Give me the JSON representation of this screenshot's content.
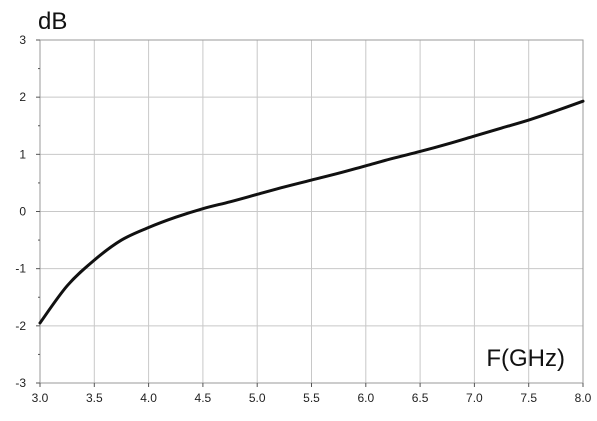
{
  "chart_data": {
    "type": "line",
    "xlabel": "F(GHz)",
    "ylabel": "dB",
    "xlim": [
      3.0,
      8.0
    ],
    "ylim": [
      -3,
      3
    ],
    "x_ticks": [
      "3.0",
      "3.5",
      "4.0",
      "4.5",
      "5.0",
      "5.5",
      "6.0",
      "6.5",
      "7.0",
      "7.5",
      "8.0"
    ],
    "y_ticks": [
      "3",
      "2",
      "1",
      "0",
      "-1",
      "-2",
      "-3"
    ],
    "grid": true,
    "series_color": "#111111",
    "series": [
      {
        "x": [
          3.0,
          3.25,
          3.5,
          3.75,
          4.0,
          4.25,
          4.5,
          4.75,
          5.0,
          5.25,
          5.5,
          5.75,
          6.0,
          6.25,
          6.5,
          6.75,
          7.0,
          7.25,
          7.5,
          7.75,
          8.0
        ],
        "y": [
          -1.95,
          -1.3,
          -0.85,
          -0.5,
          -0.28,
          -0.1,
          0.05,
          0.17,
          0.3,
          0.43,
          0.55,
          0.67,
          0.8,
          0.93,
          1.05,
          1.18,
          1.32,
          1.46,
          1.6,
          1.76,
          1.93
        ]
      }
    ]
  }
}
